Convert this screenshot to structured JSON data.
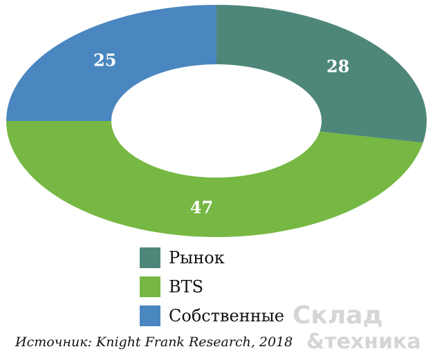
{
  "chart_data": {
    "type": "pie",
    "variant": "donut",
    "slices": [
      {
        "label": "Рынок",
        "value": 28,
        "color": "#4e877a"
      },
      {
        "label": "BTS",
        "value": 47,
        "color": "#76b843"
      },
      {
        "label": "Собственные",
        "value": 25,
        "color": "#4a86bf"
      }
    ],
    "legend_position": "bottom"
  },
  "source": "Источник: Knight Frank Research, 2018",
  "watermark": {
    "line1": "Склад",
    "line2": "&техника"
  }
}
